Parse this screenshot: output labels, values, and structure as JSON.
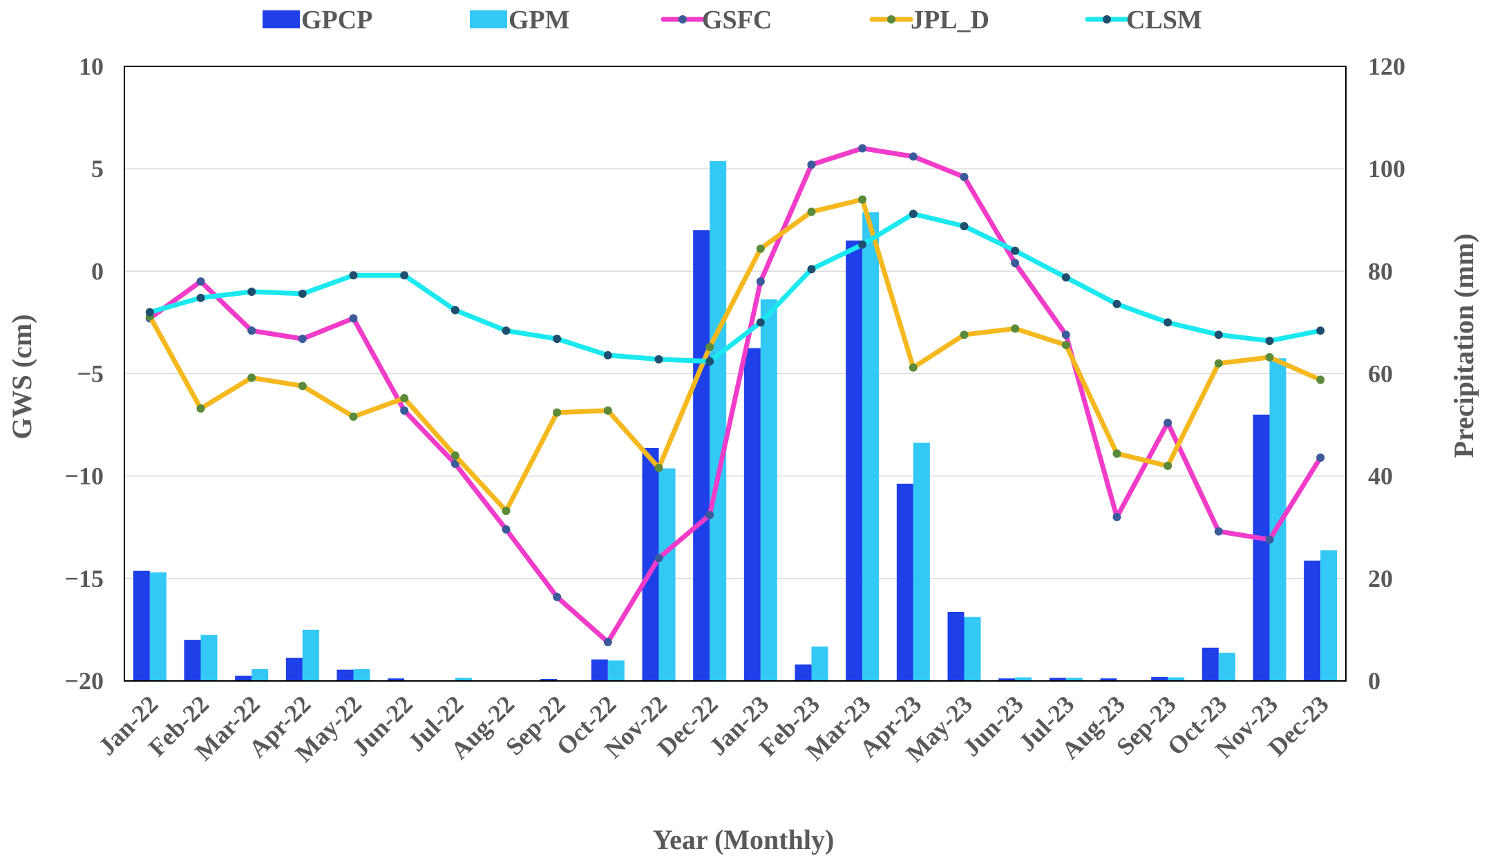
{
  "chart_data": {
    "type": "bar+line",
    "title": "",
    "xlabel": "Year (Monthly)",
    "ylabel_left": "GWS (cm)",
    "ylabel_right": "Precipitation (mm)",
    "ylim_left": [
      -20,
      10
    ],
    "ylim_right": [
      0,
      120
    ],
    "yticks_left": [
      10,
      5,
      0,
      -5,
      -10,
      -15,
      -20
    ],
    "yticks_left_labels": [
      "10",
      "5",
      "0",
      "−5",
      "−10",
      "−15",
      "−20"
    ],
    "yticks_right": [
      120,
      100,
      80,
      60,
      40,
      20,
      0
    ],
    "categories": [
      "Jan-22",
      "Feb-22",
      "Mar-22",
      "Apr-22",
      "May-22",
      "Jun-22",
      "Jul-22",
      "Aug-22",
      "Sep-22",
      "Oct-22",
      "Nov-22",
      "Dec-22",
      "Jan-23",
      "Feb-23",
      "Mar-23",
      "Apr-23",
      "May-23",
      "Jun-23",
      "Jul-23",
      "Aug-23",
      "Sep-23",
      "Oct-23",
      "Nov-23",
      "Dec-23"
    ],
    "legend_position": "top",
    "bar_series": [
      {
        "name": "GPCP",
        "axis": "right",
        "color": "#1f3fe8",
        "values": [
          21.5,
          8,
          1,
          4.5,
          2.2,
          0.5,
          0,
          0,
          0.4,
          4.2,
          45.5,
          88,
          65,
          3.2,
          86,
          38.5,
          13.5,
          0.5,
          0.6,
          0.5,
          0.8,
          6.5,
          52,
          23.5
        ]
      },
      {
        "name": "GPM",
        "axis": "right",
        "color": "#33c8f5",
        "values": [
          21.2,
          9,
          2.3,
          10,
          2.3,
          0,
          0.6,
          0,
          0,
          4,
          41.5,
          101.5,
          74.5,
          6.7,
          91.5,
          46.5,
          12.5,
          0.7,
          0.6,
          0,
          0.7,
          5.5,
          63,
          25.5
        ]
      }
    ],
    "line_series": [
      {
        "name": "GSFC",
        "axis": "left",
        "color": "#f03cc8",
        "marker_color": "#3a5a9a",
        "values": [
          -2.3,
          -0.5,
          -2.9,
          -3.3,
          -2.3,
          -6.8,
          -9.4,
          -12.6,
          -15.9,
          -18.1,
          -14.0,
          -11.9,
          -0.5,
          5.2,
          6.0,
          5.6,
          4.6,
          0.4,
          -3.1,
          -12.0,
          -7.4,
          -12.7,
          -13.1,
          -9.1
        ]
      },
      {
        "name": "JPL_D",
        "axis": "left",
        "color": "#f5b81f",
        "marker_color": "#5a8a3a",
        "values": [
          -2.2,
          -6.7,
          -5.2,
          -5.6,
          -7.1,
          -6.2,
          -9.0,
          -11.7,
          -6.9,
          -6.8,
          -9.6,
          -3.7,
          1.1,
          2.9,
          3.5,
          -4.7,
          -3.1,
          -2.8,
          -3.6,
          -8.9,
          -9.5,
          -4.5,
          -4.2,
          -5.3
        ]
      },
      {
        "name": "CLSM",
        "axis": "left",
        "color": "#1ce8f0",
        "marker_color": "#1f4f6f",
        "values": [
          -2.0,
          -1.3,
          -1.0,
          -1.1,
          -0.2,
          -0.2,
          -1.9,
          -2.9,
          -3.3,
          -4.1,
          -4.3,
          -4.4,
          -2.5,
          0.1,
          1.3,
          2.8,
          2.2,
          1.0,
          -0.3,
          -1.6,
          -2.5,
          -3.1,
          -3.4,
          -2.9
        ]
      }
    ]
  }
}
